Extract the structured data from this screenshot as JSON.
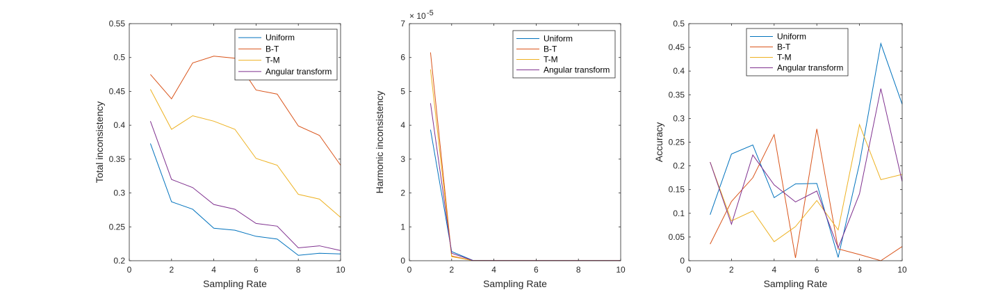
{
  "colors": {
    "Uniform": "#0072BD",
    "B-T": "#D95319",
    "T-M": "#EDB120",
    "Angular transform": "#7E2F8E",
    "axis": "#262626",
    "legend_border": "#262626"
  },
  "chart_data": [
    {
      "type": "line",
      "xlabel": "Sampling Rate",
      "ylabel": "Total inconsistency",
      "xlim": [
        0,
        10
      ],
      "ylim": [
        0.2,
        0.55
      ],
      "xticks": [
        "0",
        "2",
        "4",
        "6",
        "8",
        "10"
      ],
      "yticks": [
        "0.2",
        "0.25",
        "0.3",
        "0.35",
        "0.4",
        "0.45",
        "0.5",
        "0.55"
      ],
      "legend_position": "top-right",
      "grid": false,
      "x": [
        1,
        2,
        3,
        4,
        5,
        6,
        7,
        8,
        9,
        10
      ],
      "series": [
        {
          "name": "Uniform",
          "values": [
            0.373,
            0.287,
            0.276,
            0.248,
            0.245,
            0.236,
            0.232,
            0.208,
            0.211,
            0.21
          ]
        },
        {
          "name": "B-T",
          "values": [
            0.475,
            0.439,
            0.492,
            0.502,
            0.499,
            0.452,
            0.446,
            0.399,
            0.385,
            0.341
          ]
        },
        {
          "name": "T-M",
          "values": [
            0.453,
            0.394,
            0.414,
            0.406,
            0.394,
            0.351,
            0.341,
            0.298,
            0.291,
            0.264
          ]
        },
        {
          "name": "Angular transform",
          "values": [
            0.406,
            0.32,
            0.308,
            0.283,
            0.276,
            0.255,
            0.251,
            0.219,
            0.222,
            0.215
          ]
        }
      ]
    },
    {
      "type": "line",
      "xlabel": "Sampling Rate",
      "ylabel": "Harmonic inconsistency",
      "xlim": [
        0,
        10
      ],
      "ylim": [
        0,
        7
      ],
      "xticks": [
        "0",
        "2",
        "4",
        "6",
        "8",
        "10"
      ],
      "yticks": [
        "0",
        "1",
        "2",
        "3",
        "4",
        "5",
        "6",
        "7"
      ],
      "y_exponent_label": "× 10",
      "y_exponent": "-5",
      "legend_position": "top-right",
      "grid": false,
      "x": [
        1,
        2,
        3,
        4,
        5,
        6,
        7,
        8,
        9,
        10
      ],
      "series": [
        {
          "name": "Uniform",
          "values": [
            3.87,
            0.27,
            0.01,
            0.005,
            0.005,
            0.005,
            0.005,
            0.005,
            0.005,
            0.005
          ]
        },
        {
          "name": "B-T",
          "values": [
            6.15,
            0.14,
            0.005,
            0.005,
            0.005,
            0.005,
            0.005,
            0.005,
            0.005,
            0.005
          ]
        },
        {
          "name": "T-M",
          "values": [
            5.65,
            0.12,
            0.005,
            0.005,
            0.005,
            0.005,
            0.005,
            0.005,
            0.005,
            0.005
          ]
        },
        {
          "name": "Angular transform",
          "values": [
            4.65,
            0.22,
            0.008,
            0.005,
            0.005,
            0.005,
            0.005,
            0.005,
            0.005,
            0.005
          ]
        }
      ]
    },
    {
      "type": "line",
      "xlabel": "Sampling Rate",
      "ylabel": "Accuracy",
      "xlim": [
        0,
        10
      ],
      "ylim": [
        0,
        0.5
      ],
      "xticks": [
        "0",
        "2",
        "4",
        "6",
        "8",
        "10"
      ],
      "yticks": [
        "0",
        "0.05",
        "0.1",
        "0.15",
        "0.2",
        "0.25",
        "0.3",
        "0.35",
        "0.4",
        "0.45",
        "0.5"
      ],
      "legend_position": "top-left",
      "grid": false,
      "x": [
        1,
        2,
        3,
        4,
        5,
        6,
        7,
        8,
        9,
        10
      ],
      "series": [
        {
          "name": "Uniform",
          "values": [
            0.097,
            0.225,
            0.244,
            0.133,
            0.162,
            0.163,
            0.007,
            0.205,
            0.458,
            0.33
          ]
        },
        {
          "name": "B-T",
          "values": [
            0.035,
            0.125,
            0.175,
            0.266,
            0.006,
            0.278,
            0.025,
            0.013,
            0.0,
            0.03
          ]
        },
        {
          "name": "T-M",
          "values": [
            0.208,
            0.084,
            0.105,
            0.04,
            0.072,
            0.127,
            0.065,
            0.287,
            0.171,
            0.182
          ]
        },
        {
          "name": "Angular transform",
          "values": [
            0.208,
            0.077,
            0.223,
            0.16,
            0.124,
            0.147,
            0.027,
            0.141,
            0.363,
            0.167
          ]
        }
      ]
    }
  ]
}
